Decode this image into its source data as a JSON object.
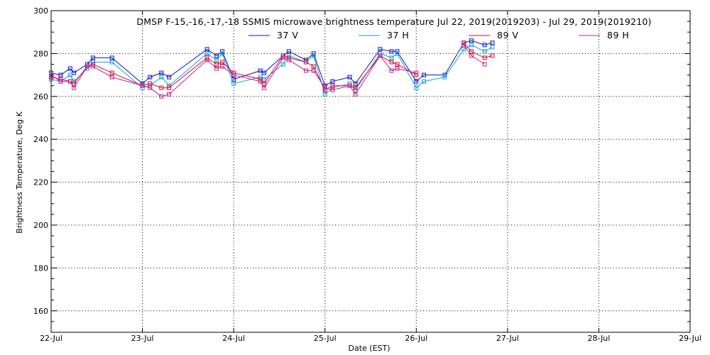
{
  "chart_data": {
    "type": "line",
    "title": "DMSP F-15,-16,-17,-18 SSMIS microwave brightness temperature Jul 22, 2019(2019203) - Jul 29, 2019(2019210)",
    "xlabel": "Date (EST)",
    "ylabel": "Brightness Temperature, Deg K",
    "x_ticks": [
      "22-Jul",
      "23-Jul",
      "24-Jul",
      "25-Jul",
      "26-Jul",
      "27-Jul",
      "28-Jul",
      "29-Jul"
    ],
    "xlim": [
      "2019-07-22T00:00",
      "2019-07-29T00:00"
    ],
    "y_ticks": [
      160,
      180,
      200,
      220,
      240,
      260,
      280,
      300
    ],
    "ylim": [
      150,
      300
    ],
    "grid": true,
    "legend_position": "top-center",
    "x": [
      "2019-07-22T00:00",
      "2019-07-22T02:30",
      "2019-07-22T05:00",
      "2019-07-22T06:00",
      "2019-07-22T09:30",
      "2019-07-22T11:00",
      "2019-07-22T16:00",
      "2019-07-23T00:00",
      "2019-07-23T02:00",
      "2019-07-23T05:00",
      "2019-07-23T07:00",
      "2019-07-23T17:00",
      "2019-07-23T19:30",
      "2019-07-23T21:00",
      "2019-07-24T00:00",
      "2019-07-24T07:00",
      "2019-07-24T08:00",
      "2019-07-24T13:00",
      "2019-07-24T14:30",
      "2019-07-24T19:00",
      "2019-07-24T21:00",
      "2019-07-25T00:00",
      "2019-07-25T02:00",
      "2019-07-25T06:30",
      "2019-07-25T08:00",
      "2019-07-25T14:30",
      "2019-07-25T17:30",
      "2019-07-25T19:00",
      "2019-07-26T00:00",
      "2019-07-26T02:00",
      "2019-07-26T07:30",
      "2019-07-26T12:30",
      "2019-07-26T14:30",
      "2019-07-26T18:00",
      "2019-07-26T20:00"
    ],
    "series": [
      {
        "name": "37 V",
        "color": "#1010c8",
        "values": [
          271,
          270,
          273,
          271,
          275,
          278,
          278,
          266,
          269,
          271,
          269,
          282,
          279,
          281,
          268,
          272,
          271,
          279,
          281,
          277,
          280,
          265,
          267,
          269,
          266,
          282,
          281,
          281,
          267,
          270,
          270,
          285,
          286,
          284,
          285
        ]
      },
      {
        "name": "37 H",
        "color": "#10a0d8",
        "values": [
          268,
          267,
          270,
          267,
          273,
          276,
          276,
          264,
          265,
          269,
          265,
          280,
          277,
          280,
          266,
          269,
          268,
          275,
          279,
          276,
          279,
          261,
          264,
          266,
          263,
          280,
          278,
          280,
          264,
          267,
          269,
          282,
          284,
          281,
          283
        ]
      },
      {
        "name": "89 V",
        "color": "#d01030",
        "values": [
          269,
          268,
          267,
          266,
          274,
          275,
          271,
          265,
          266,
          264,
          264,
          278,
          275,
          276,
          271,
          268,
          266,
          279,
          278,
          276,
          274,
          263,
          265,
          265,
          264,
          279,
          276,
          275,
          270,
          null,
          null,
          285,
          281,
          278,
          279
        ]
      },
      {
        "name": "89 H",
        "color": "#c02090",
        "values": [
          270,
          267,
          267,
          264,
          274,
          274,
          269,
          265,
          264,
          260,
          261,
          277,
          273,
          274,
          270,
          267,
          264,
          278,
          277,
          272,
          272,
          264,
          263,
          265,
          261,
          279,
          272,
          273,
          271,
          null,
          null,
          284,
          279,
          275,
          null
        ]
      }
    ]
  }
}
